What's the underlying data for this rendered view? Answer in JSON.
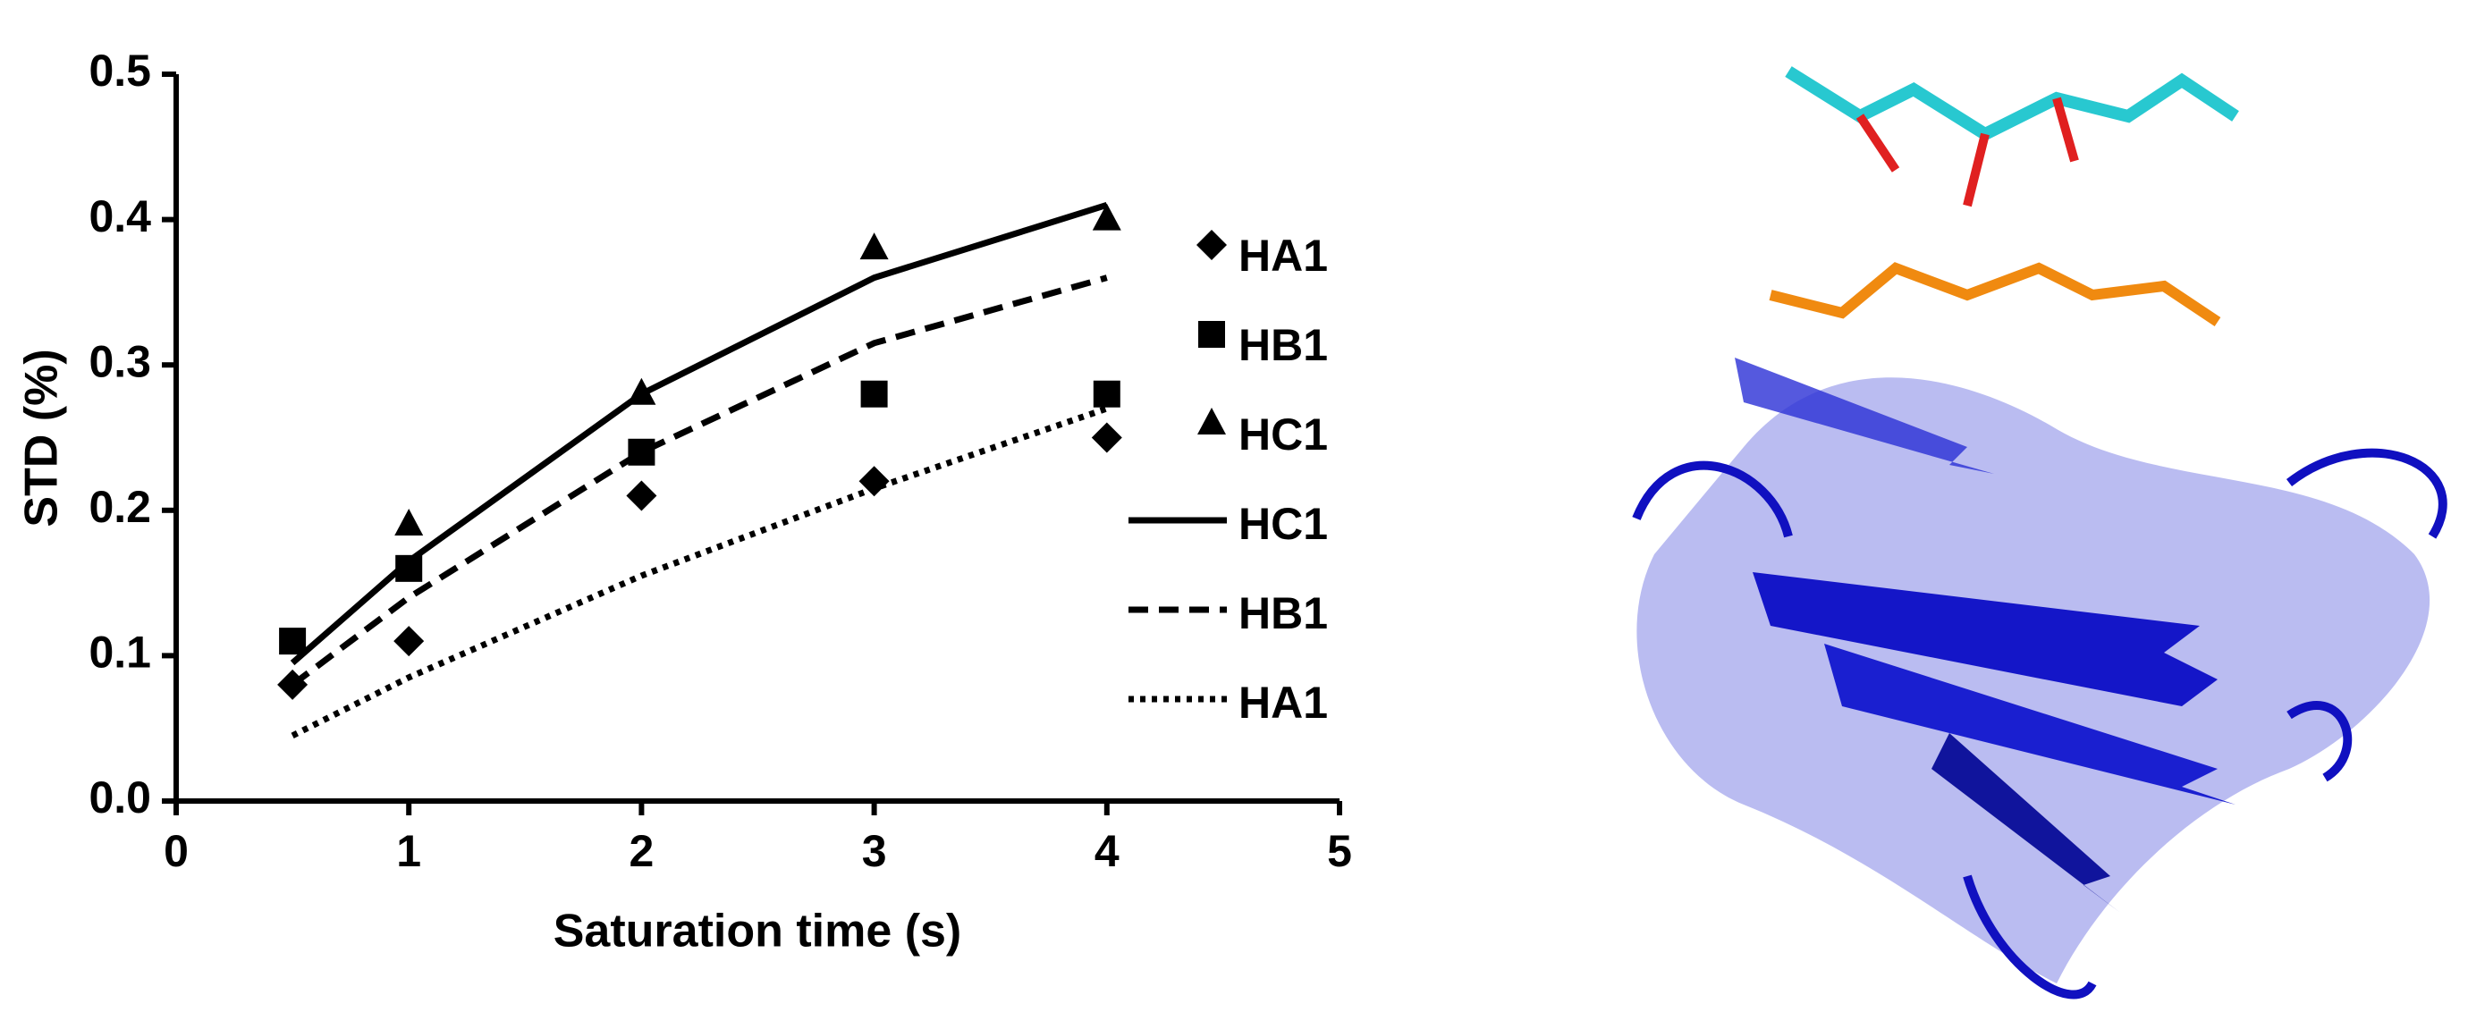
{
  "chart_data": {
    "type": "scatter",
    "x_label": "Saturation time (s)",
    "y_label": "STD (%)",
    "x": [
      0.5,
      1,
      2,
      3,
      4
    ],
    "series": [
      {
        "name": "HA1",
        "color": "#000000",
        "kind": "points",
        "marker": "diamond",
        "values": [
          0.08,
          0.11,
          0.21,
          0.22,
          0.25
        ]
      },
      {
        "name": "HB1",
        "color": "#000000",
        "kind": "points",
        "marker": "square",
        "values": [
          0.11,
          0.16,
          0.24,
          0.28,
          0.28
        ]
      },
      {
        "name": "HC1",
        "color": "#000000",
        "kind": "points",
        "marker": "triangle",
        "values": [
          null,
          0.19,
          0.28,
          0.38,
          0.4
        ]
      },
      {
        "name": "HC1",
        "color": "#000000",
        "kind": "line",
        "dash": "solid",
        "values": [
          0.095,
          0.165,
          0.28,
          0.36,
          0.41
        ]
      },
      {
        "name": "HB1",
        "color": "#000000",
        "kind": "line",
        "dash": "dashed",
        "values": [
          0.08,
          0.14,
          0.24,
          0.315,
          0.36
        ]
      },
      {
        "name": "HA1",
        "color": "#000000",
        "kind": "line",
        "dash": "dotted",
        "values": [
          0.045,
          0.085,
          0.155,
          0.215,
          0.27
        ]
      }
    ],
    "xlim": [
      0,
      5
    ],
    "xticks": [
      0,
      1,
      2,
      3,
      4,
      5
    ],
    "ylim": [
      0,
      0.5
    ],
    "yticks": [
      {
        "value": 0,
        "label": "0.0"
      },
      0.1,
      0.2,
      0.3,
      0.4,
      0.5
    ],
    "legend": "right"
  }
}
